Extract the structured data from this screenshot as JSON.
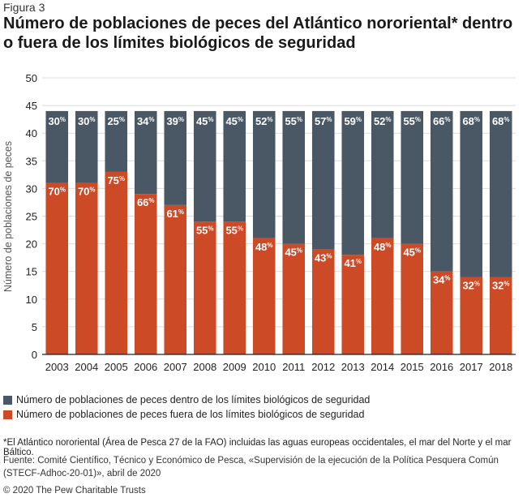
{
  "figure_label": "Figura 3",
  "colors": {
    "inside": "#4a5866",
    "outside": "#cc4a26",
    "grid": "#dcdcdc",
    "axis": "#222222"
  },
  "legend": {
    "inside": "Número de poblaciones de peces dentro de los límites biológicos de seguridad",
    "outside": "Número de poblaciones de peces fuera de los límites biológicos de seguridad"
  },
  "footnote": "*El Atlántico nororiental (Área de Pesca 27 de la FAO) incluidas las aguas europeas occidentales, el mar del Norte y el mar Báltico.",
  "source": "Fuente: Comité Científico, Técnico y Económico de Pesca, «Supervisión de la ejecución de la Política Pesquera Común (STECF-Adhoc-20-01)», abril de 2020",
  "copyright": "© 2020 The Pew Charitable Trusts",
  "chart_data": {
    "type": "bar",
    "stacked": true,
    "title": "Número de poblaciones de peces del Atlántico nororiental* dentro o fuera de los límites biológicos de seguridad",
    "ylabel": "Número de poblaciones de peces",
    "xlabel": "",
    "ylim": [
      0,
      50
    ],
    "yticks": [
      0,
      5,
      10,
      15,
      20,
      25,
      30,
      35,
      40,
      45,
      50
    ],
    "grid": true,
    "legend_position": "bottom",
    "categories": [
      "2003",
      "2004",
      "2005",
      "2006",
      "2007",
      "2008",
      "2009",
      "2010",
      "2011",
      "2012",
      "2013",
      "2014",
      "2015",
      "2016",
      "2017",
      "2018"
    ],
    "series": [
      {
        "name": "Número de poblaciones de peces fuera de los límites biológicos de seguridad",
        "values": [
          31,
          31,
          33,
          29,
          27,
          24,
          24,
          21,
          20,
          19,
          18,
          21,
          20,
          15,
          14,
          14
        ],
        "labels": [
          "70%",
          "70%",
          "75%",
          "66%",
          "61%",
          "55%",
          "55%",
          "48%",
          "45%",
          "43%",
          "41%",
          "48%",
          "45%",
          "34%",
          "32%",
          "32%"
        ]
      },
      {
        "name": "Número de poblaciones de peces dentro de los límites biológicos de seguridad",
        "values": [
          13,
          13,
          11,
          15,
          17,
          20,
          20,
          23,
          24,
          25,
          26,
          23,
          24,
          29,
          30,
          30
        ],
        "labels": [
          "30%",
          "30%",
          "25%",
          "34%",
          "39%",
          "45%",
          "45%",
          "52%",
          "55%",
          "57%",
          "59%",
          "52%",
          "55%",
          "66%",
          "68%",
          "68%"
        ]
      }
    ]
  }
}
